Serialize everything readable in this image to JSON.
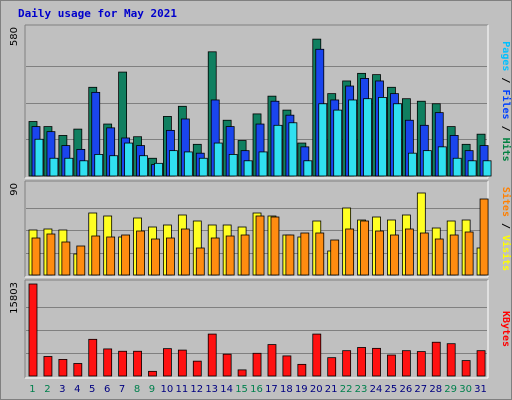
{
  "chart_data": {
    "type": "bar",
    "title": "Daily usage for May 2021",
    "categories": [
      "1",
      "2",
      "3",
      "4",
      "5",
      "6",
      "7",
      "8",
      "9",
      "10",
      "11",
      "12",
      "13",
      "14",
      "15",
      "16",
      "17",
      "18",
      "19",
      "20",
      "21",
      "22",
      "23",
      "24",
      "25",
      "26",
      "27",
      "28",
      "29",
      "30",
      "31"
    ],
    "weekend_days": [
      "1",
      "2",
      "8",
      "9",
      "15",
      "16",
      "22",
      "23",
      "29",
      "30"
    ],
    "panels": [
      {
        "ymax_label": "580",
        "ylim": [
          0,
          580
        ],
        "right_label": [
          {
            "text": "Pages",
            "color": "#00c0ff"
          },
          {
            "text": " / ",
            "color": "#000000"
          },
          {
            "text": "Files",
            "color": "#0040ff"
          },
          {
            "text": " / ",
            "color": "#000000"
          },
          {
            "text": "Hits",
            "color": "#008040"
          }
        ],
        "series": [
          {
            "name": "Hits",
            "color": "#107f60",
            "values": [
              215,
              195,
              160,
              185,
              350,
              205,
              410,
              155,
              70,
              235,
              275,
              125,
              490,
              220,
              140,
              245,
              315,
              260,
              130,
              540,
              325,
              375,
              405,
              400,
              350,
              305,
              295,
              285,
              195,
              125,
              165
            ]
          },
          {
            "name": "Files",
            "color": "#1a45ee",
            "values": [
              195,
              175,
              120,
              105,
              330,
              190,
              150,
              120,
              45,
              180,
              225,
              90,
              300,
              195,
              100,
              205,
              295,
              240,
              115,
              500,
              300,
              355,
              385,
              375,
              325,
              220,
              200,
              250,
              160,
              100,
              120
            ]
          },
          {
            "name": "Pages",
            "color": "#30e0f0",
            "values": [
              145,
              70,
              70,
              60,
              85,
              80,
              130,
              80,
              50,
              100,
              95,
              70,
              130,
              85,
              60,
              95,
              200,
              210,
              60,
              285,
              260,
              300,
              305,
              310,
              285,
              90,
              100,
              115,
              70,
              60,
              60
            ]
          }
        ]
      },
      {
        "ymax_label": "90",
        "ylim": [
          0,
          90
        ],
        "right_label": [
          {
            "text": "Sites",
            "color": "#ff8000"
          },
          {
            "text": " / ",
            "color": "#000000"
          },
          {
            "text": "Visits",
            "color": "#ffff00"
          }
        ],
        "series": [
          {
            "name": "Visits",
            "color": "#ffff22",
            "values": [
              45,
              46,
              45,
              21,
              62,
              59,
              38,
              57,
              48,
              50,
              60,
              54,
              50,
              50,
              48,
              62,
              59,
              40,
              38,
              54,
              24,
              67,
              55,
              58,
              55,
              60,
              82,
              47,
              54,
              55,
              27
            ]
          },
          {
            "name": "Sites",
            "color": "#ff8c10",
            "values": [
              37,
              41,
              33,
              29,
              39,
              38,
              40,
              44,
              36,
              37,
              46,
              27,
              37,
              39,
              40,
              59,
              58,
              40,
              42,
              42,
              35,
              46,
              54,
              44,
              40,
              46,
              42,
              36,
              40,
              43,
              76
            ]
          }
        ]
      },
      {
        "ymax_label": "15803",
        "ylim": [
          0,
          15803
        ],
        "right_label": [
          {
            "text": "KBytes",
            "color": "#ff0000"
          }
        ],
        "series": [
          {
            "name": "KBytes",
            "color": "#ff1111",
            "values": [
              15803,
              3350,
              2850,
              2150,
              6300,
              4650,
              4250,
              4250,
              800,
              4700,
              4450,
              2550,
              7200,
              3750,
              1050,
              3900,
              5400,
              3450,
              2000,
              7200,
              3150,
              4350,
              4900,
              4750,
              3600,
              4350,
              4200,
              5800,
              5550,
              2650,
              4350
            ]
          }
        ]
      }
    ],
    "colors": {
      "weekday_label": "#000080",
      "weekend_label": "#00804d"
    }
  }
}
